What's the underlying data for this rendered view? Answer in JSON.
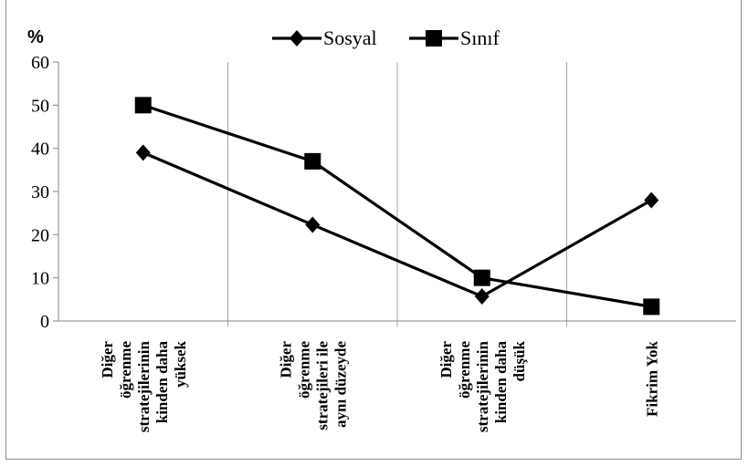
{
  "chart_data": {
    "type": "line",
    "ylabel": "%",
    "ylim": [
      0,
      60
    ],
    "yticks": [
      0,
      10,
      20,
      30,
      40,
      50,
      60
    ],
    "grid": "vertical category separators",
    "legend": "top-center",
    "categories": [
      [
        "Diğer",
        "öğrenme",
        "stratejilerinin",
        "kinden daha",
        "yüksek"
      ],
      [
        "Diğer",
        "öğrenme",
        "stratejileri ile",
        "aynı düzeyde"
      ],
      [
        "Diğer",
        "öğrenme",
        "stratejilerinin",
        "kinden daha",
        "düşük"
      ],
      [
        "Fikrim Yok"
      ]
    ],
    "series": [
      {
        "name": "Sosyal",
        "marker": "diamond",
        "color": "#000000",
        "values": [
          39,
          22.3,
          5.7,
          28
        ]
      },
      {
        "name": "Sınıf",
        "marker": "square",
        "color": "#000000",
        "values": [
          50,
          37,
          10,
          3.3
        ]
      }
    ]
  }
}
